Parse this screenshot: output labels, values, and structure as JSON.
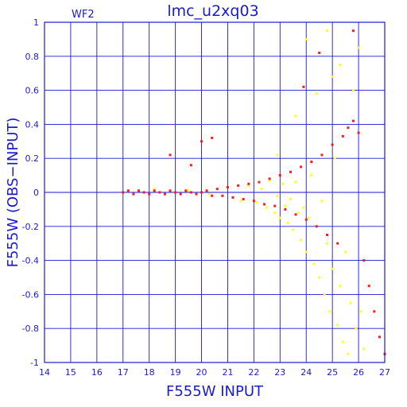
{
  "chart_data": {
    "type": "scatter",
    "title": "lmc_u2xq03",
    "subtitle": "WF2",
    "xlabel": "F555W INPUT",
    "ylabel": "F555W (OBS−INPUT)",
    "xlim": [
      14,
      27
    ],
    "ylim": [
      -1,
      1
    ],
    "xticks": [
      "14",
      "15",
      "16",
      "17",
      "18",
      "19",
      "20",
      "21",
      "22",
      "23",
      "24",
      "25",
      "26",
      "27"
    ],
    "yticks": [
      "-1",
      "-0.8",
      "-0.6",
      "-0.4",
      "-0.2",
      "0",
      "0.2",
      "0.4",
      "0.6",
      "0.8",
      "1"
    ],
    "grid": true,
    "colors": {
      "axis": "#1a1ad0",
      "series_a": "#ff1a1a",
      "series_b": "#ffff1a"
    },
    "series": [
      {
        "color": "#ffff1a",
        "points": [
          [
            18.2,
            0.02
          ],
          [
            19.5,
            0.01
          ],
          [
            20.3,
            -0.01
          ],
          [
            21.0,
            0.03
          ],
          [
            21.5,
            -0.05
          ],
          [
            21.8,
            0.04
          ],
          [
            22.1,
            -0.06
          ],
          [
            22.3,
            0.02
          ],
          [
            22.5,
            -0.09
          ],
          [
            22.6,
            0.07
          ],
          [
            22.8,
            -0.12
          ],
          [
            22.9,
            -0.02
          ],
          [
            23.0,
            -0.15
          ],
          [
            23.1,
            0.05
          ],
          [
            23.2,
            -0.08
          ],
          [
            23.3,
            -0.18
          ],
          [
            23.4,
            -0.04
          ],
          [
            23.5,
            -0.22
          ],
          [
            23.6,
            0.06
          ],
          [
            23.7,
            -0.12
          ],
          [
            23.8,
            -0.28
          ],
          [
            23.9,
            -0.09
          ],
          [
            24.0,
            -0.35
          ],
          [
            24.1,
            -0.15
          ],
          [
            24.2,
            0.1
          ],
          [
            24.3,
            -0.42
          ],
          [
            24.4,
            -0.2
          ],
          [
            24.5,
            -0.5
          ],
          [
            24.6,
            -0.05
          ],
          [
            24.7,
            -0.6
          ],
          [
            24.8,
            -0.3
          ],
          [
            24.9,
            -0.7
          ],
          [
            25.0,
            -0.45
          ],
          [
            25.1,
            0.2
          ],
          [
            25.2,
            -0.78
          ],
          [
            25.3,
            -0.55
          ],
          [
            25.4,
            -0.88
          ],
          [
            25.5,
            -0.35
          ],
          [
            25.6,
            -0.95
          ],
          [
            25.7,
            -0.65
          ],
          [
            25.8,
            0.6
          ],
          [
            25.9,
            -0.8
          ],
          [
            26.0,
            0.85
          ],
          [
            26.1,
            -0.7
          ],
          [
            26.2,
            -0.92
          ],
          [
            24.0,
            0.9
          ],
          [
            24.8,
            0.95
          ],
          [
            25.3,
            0.75
          ],
          [
            23.6,
            0.45
          ],
          [
            22.9,
            0.22
          ],
          [
            24.4,
            0.58
          ],
          [
            25.0,
            0.68
          ]
        ]
      },
      {
        "color": "#ff1a1a",
        "points": [
          [
            17.0,
            0.0
          ],
          [
            17.2,
            0.01
          ],
          [
            17.4,
            -0.01
          ],
          [
            17.6,
            0.01
          ],
          [
            17.8,
            0.0
          ],
          [
            18.0,
            -0.01
          ],
          [
            18.2,
            0.01
          ],
          [
            18.4,
            0.0
          ],
          [
            18.6,
            -0.01
          ],
          [
            18.8,
            0.01
          ],
          [
            19.0,
            0.0
          ],
          [
            19.2,
            -0.01
          ],
          [
            19.4,
            0.01
          ],
          [
            19.6,
            0.0
          ],
          [
            19.8,
            -0.01
          ],
          [
            20.0,
            0.0
          ],
          [
            20.2,
            0.01
          ],
          [
            20.4,
            -0.02
          ],
          [
            20.6,
            0.02
          ],
          [
            20.8,
            -0.02
          ],
          [
            21.0,
            0.03
          ],
          [
            21.2,
            -0.03
          ],
          [
            21.4,
            0.04
          ],
          [
            21.6,
            -0.04
          ],
          [
            21.8,
            0.05
          ],
          [
            22.0,
            -0.05
          ],
          [
            22.2,
            0.06
          ],
          [
            22.4,
            -0.07
          ],
          [
            22.6,
            0.08
          ],
          [
            22.8,
            -0.08
          ],
          [
            23.0,
            0.1
          ],
          [
            23.2,
            -0.1
          ],
          [
            23.4,
            0.12
          ],
          [
            23.6,
            -0.13
          ],
          [
            23.8,
            0.15
          ],
          [
            24.0,
            -0.16
          ],
          [
            24.2,
            0.18
          ],
          [
            24.4,
            -0.2
          ],
          [
            24.6,
            0.22
          ],
          [
            24.8,
            -0.25
          ],
          [
            25.0,
            0.28
          ],
          [
            25.2,
            -0.3
          ],
          [
            25.4,
            0.33
          ],
          [
            25.6,
            0.38
          ],
          [
            25.8,
            0.42
          ],
          [
            26.0,
            0.35
          ],
          [
            26.2,
            -0.4
          ],
          [
            26.4,
            -0.55
          ],
          [
            26.6,
            -0.7
          ],
          [
            26.8,
            -0.85
          ],
          [
            27.0,
            -0.95
          ],
          [
            20.4,
            0.32
          ],
          [
            20.0,
            0.3
          ],
          [
            18.8,
            0.22
          ],
          [
            19.6,
            0.16
          ],
          [
            24.5,
            0.82
          ],
          [
            25.8,
            0.95
          ],
          [
            23.9,
            0.62
          ]
        ]
      }
    ]
  }
}
